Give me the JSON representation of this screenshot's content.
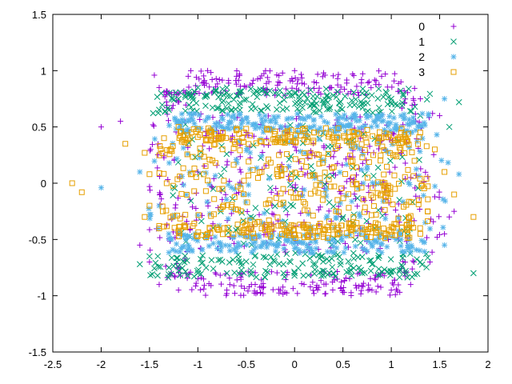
{
  "chart_data": {
    "type": "scatter",
    "title": "",
    "xlabel": "",
    "ylabel": "",
    "xlim": [
      -2.5,
      2
    ],
    "ylim": [
      -1.5,
      1.5
    ],
    "xticks": [
      -2.5,
      -2,
      -1.5,
      -1,
      -0.5,
      0,
      0.5,
      1,
      1.5,
      2
    ],
    "yticks": [
      -1.5,
      -1,
      -0.5,
      0,
      0.5,
      1,
      1.5
    ],
    "xtick_labels": [
      "-2.5",
      "-2",
      "-1.5",
      "-1",
      "-0.5",
      "0",
      "0.5",
      "1",
      "1.5",
      "2"
    ],
    "ytick_labels": [
      "-1.5",
      "-1",
      "-0.5",
      "0",
      "0.5",
      "1",
      "1.5"
    ],
    "grid": false,
    "legend_position": "top-right",
    "series": [
      {
        "name": "0",
        "marker": "plus",
        "color": "#9400d3",
        "approx_count": 700,
        "distribution": "rings near y=±1 and dense band |y|<=0.6, x spread -1.6 to 1.7",
        "points": [
          [
            -2.0,
            0.5
          ],
          [
            -1.8,
            0.55
          ],
          [
            -1.45,
            0.96
          ],
          [
            -1.4,
            0.85
          ],
          [
            -1.3,
            0.8
          ],
          [
            -1.1,
            0.95
          ],
          [
            -0.9,
            1.0
          ],
          [
            -0.6,
            0.95
          ],
          [
            -0.3,
            1.0
          ],
          [
            0.0,
            1.0
          ],
          [
            0.3,
            0.98
          ],
          [
            0.6,
            0.97
          ],
          [
            0.9,
            0.95
          ],
          [
            1.1,
            0.9
          ],
          [
            1.3,
            0.75
          ],
          [
            1.5,
            0.6
          ],
          [
            -1.5,
            -0.7
          ],
          [
            -1.4,
            -0.9
          ],
          [
            -1.2,
            -0.95
          ],
          [
            -1.0,
            -0.85
          ],
          [
            -0.7,
            -0.95
          ],
          [
            -0.4,
            -0.98
          ],
          [
            -0.1,
            -0.97
          ],
          [
            0.2,
            -0.98
          ],
          [
            0.5,
            -0.97
          ],
          [
            0.8,
            -0.95
          ],
          [
            1.0,
            -0.95
          ],
          [
            1.2,
            -0.9
          ],
          [
            1.4,
            -0.7
          ],
          [
            1.55,
            -0.45
          ],
          [
            1.6,
            -0.3
          ],
          [
            1.65,
            -0.25
          ],
          [
            -1.6,
            -0.55
          ],
          [
            1.2,
            0.05
          ],
          [
            -1.0,
            0.1
          ]
        ]
      },
      {
        "name": "1",
        "marker": "cross",
        "color": "#009e73",
        "approx_count": 500,
        "distribution": "rings near y=±0.8, x spread -1.6 to 1.85",
        "points": [
          [
            -1.3,
            0.65
          ],
          [
            -1.2,
            0.75
          ],
          [
            -1.0,
            0.85
          ],
          [
            -0.7,
            0.85
          ],
          [
            -0.4,
            0.82
          ],
          [
            0.0,
            0.8
          ],
          [
            0.4,
            0.78
          ],
          [
            0.7,
            0.8
          ],
          [
            1.0,
            0.75
          ],
          [
            1.3,
            0.6
          ],
          [
            1.6,
            0.5
          ],
          [
            1.7,
            0.72
          ],
          [
            -1.6,
            -0.72
          ],
          [
            -1.3,
            -0.75
          ],
          [
            -1.0,
            -0.8
          ],
          [
            -0.7,
            -0.8
          ],
          [
            -0.3,
            -0.78
          ],
          [
            0.0,
            -0.8
          ],
          [
            0.3,
            -0.82
          ],
          [
            0.7,
            -0.8
          ],
          [
            1.0,
            -0.78
          ],
          [
            1.3,
            -0.7
          ],
          [
            1.85,
            -0.8
          ],
          [
            -1.5,
            -0.65
          ]
        ]
      },
      {
        "name": "2",
        "marker": "star",
        "color": "#56b4e9",
        "approx_count": 550,
        "distribution": "rings near y=±0.55, x spread -2.0 to 1.7",
        "points": [
          [
            -2.0,
            -0.04
          ],
          [
            -1.6,
            0.1
          ],
          [
            -1.4,
            -0.2
          ],
          [
            -1.2,
            0.55
          ],
          [
            -0.9,
            0.58
          ],
          [
            -0.5,
            0.58
          ],
          [
            -0.2,
            0.57
          ],
          [
            0.2,
            0.56
          ],
          [
            0.5,
            0.58
          ],
          [
            0.9,
            0.55
          ],
          [
            1.2,
            0.45
          ],
          [
            1.55,
            0.75
          ],
          [
            1.7,
            0.08
          ],
          [
            1.35,
            -0.35
          ],
          [
            -1.1,
            -0.55
          ],
          [
            -0.8,
            -0.58
          ],
          [
            -0.4,
            -0.57
          ],
          [
            0.0,
            -0.58
          ],
          [
            0.4,
            -0.56
          ],
          [
            0.8,
            -0.55
          ],
          [
            1.1,
            -0.5
          ],
          [
            1.55,
            -0.55
          ],
          [
            -1.3,
            -0.45
          ]
        ]
      },
      {
        "name": "3",
        "marker": "square",
        "color": "#e69f00",
        "approx_count": 600,
        "distribution": "dense ellipse band |y|<=0.5, x spread -2.3 to 1.85",
        "points": [
          [
            -2.3,
            0.0
          ],
          [
            -2.2,
            -0.08
          ],
          [
            -1.75,
            0.35
          ],
          [
            -1.55,
            0.27
          ],
          [
            -1.5,
            0.08
          ],
          [
            -1.35,
            0.4
          ],
          [
            -1.2,
            0.5
          ],
          [
            -1.0,
            0.48
          ],
          [
            -0.6,
            0.47
          ],
          [
            -0.2,
            0.46
          ],
          [
            0.2,
            0.45
          ],
          [
            0.6,
            0.46
          ],
          [
            0.9,
            0.4
          ],
          [
            1.1,
            0.35
          ],
          [
            1.3,
            0.45
          ],
          [
            1.45,
            0.3
          ],
          [
            1.55,
            0.1
          ],
          [
            1.65,
            -0.1
          ],
          [
            1.85,
            -0.3
          ],
          [
            -1.55,
            -0.3
          ],
          [
            -1.4,
            -0.38
          ],
          [
            -1.2,
            -0.42
          ],
          [
            -0.9,
            -0.45
          ],
          [
            -0.5,
            -0.47
          ],
          [
            -0.1,
            -0.46
          ],
          [
            0.3,
            -0.45
          ],
          [
            0.7,
            -0.45
          ],
          [
            1.0,
            -0.43
          ],
          [
            1.3,
            -0.45
          ],
          [
            -1.5,
            -0.2
          ]
        ]
      }
    ]
  }
}
